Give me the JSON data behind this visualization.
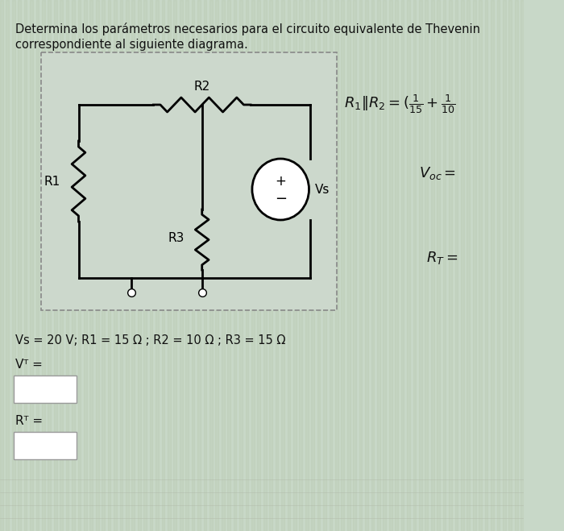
{
  "bg_color": "#c8d8c8",
  "title_line1": "Determina los parámetros necesarios para el circuito equivalente de Thevenin",
  "title_line2": "correspondiente al siguiente diagrama.",
  "circuit_box_color": "#d0ddd0",
  "circuit_box_border": "#aaaaaa",
  "wire_color": "#000000",
  "component_color": "#000000",
  "values_text": "Vs = 20 V; R1 = 15 Ω ; R2 = 10 Ω ; R3 = 15 Ω",
  "vt_label": "Vᵀ =",
  "rt_label": "Rᵀ =",
  "rhs_formula1": "R₁‖R₂=(¹⁄₁₅ + ¹⁄₁₀",
  "rhs_voc": "Vₒ℃ =",
  "rhs_rt": "Rᵀ=",
  "font_size_title": 10.5,
  "font_size_values": 10.5,
  "font_size_labels": 11,
  "background_stripe_color1": "#c8d4c0",
  "background_stripe_color2": "#d4dcc8"
}
